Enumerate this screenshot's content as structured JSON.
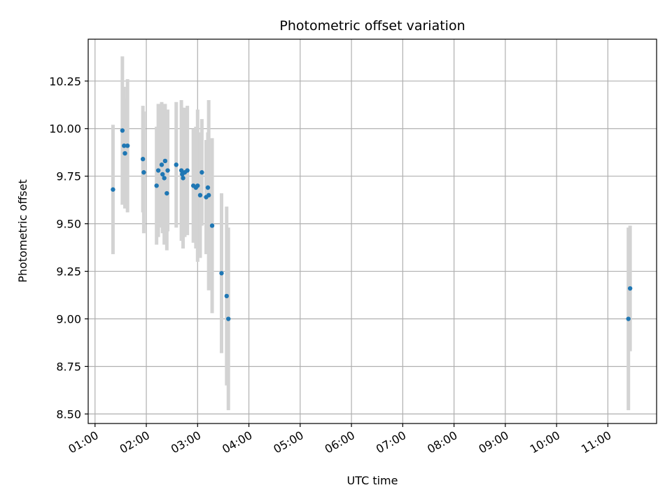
{
  "chart_data": {
    "type": "scatter",
    "title": "Photometric offset variation",
    "xlabel": "UTC time",
    "ylabel": "Photometric offset",
    "x_unit": "UTC hour",
    "xlim": [
      "00:52",
      "11:57"
    ],
    "ylim": [
      8.45,
      10.47
    ],
    "grid": true,
    "x_ticks": [
      "01:00",
      "02:00",
      "03:00",
      "04:00",
      "05:00",
      "06:00",
      "07:00",
      "08:00",
      "09:00",
      "10:00",
      "11:00"
    ],
    "y_ticks": [
      "8.50",
      "8.75",
      "9.00",
      "9.25",
      "9.50",
      "9.75",
      "10.00",
      "10.25"
    ],
    "colors": {
      "points": "#1f77b4",
      "errorbars": "#d3d3d3",
      "grid": "#b0b0b0"
    },
    "points": [
      {
        "x": "01:21",
        "y": 9.68,
        "err": 0.34
      },
      {
        "x": "01:32",
        "y": 9.99,
        "err": 0.39
      },
      {
        "x": "01:34",
        "y": 9.91,
        "err": 0.31
      },
      {
        "x": "01:35",
        "y": 9.87,
        "err": 0.29
      },
      {
        "x": "01:38",
        "y": 9.91,
        "err": 0.35
      },
      {
        "x": "01:56",
        "y": 9.84,
        "err": 0.28
      },
      {
        "x": "01:57",
        "y": 9.77,
        "err": 0.32
      },
      {
        "x": "02:12",
        "y": 9.7,
        "err": 0.31
      },
      {
        "x": "02:14",
        "y": 9.78,
        "err": 0.35
      },
      {
        "x": "02:18",
        "y": 9.81,
        "err": 0.33
      },
      {
        "x": "02:19",
        "y": 9.76,
        "err": 0.31
      },
      {
        "x": "02:21",
        "y": 9.74,
        "err": 0.35
      },
      {
        "x": "02:22",
        "y": 9.83,
        "err": 0.3
      },
      {
        "x": "02:24",
        "y": 9.66,
        "err": 0.3
      },
      {
        "x": "02:25",
        "y": 9.78,
        "err": 0.32
      },
      {
        "x": "02:35",
        "y": 9.81,
        "err": 0.33
      },
      {
        "x": "02:41",
        "y": 9.78,
        "err": 0.37
      },
      {
        "x": "02:42",
        "y": 9.76,
        "err": 0.32
      },
      {
        "x": "02:43",
        "y": 9.74,
        "err": 0.37
      },
      {
        "x": "02:45",
        "y": 9.77,
        "err": 0.34
      },
      {
        "x": "02:48",
        "y": 9.78,
        "err": 0.34
      },
      {
        "x": "02:55",
        "y": 9.7,
        "err": 0.3
      },
      {
        "x": "02:58",
        "y": 9.69,
        "err": 0.32
      },
      {
        "x": "03:00",
        "y": 9.7,
        "err": 0.4
      },
      {
        "x": "03:03",
        "y": 9.65,
        "err": 0.33
      },
      {
        "x": "03:05",
        "y": 9.77,
        "err": 0.28
      },
      {
        "x": "03:10",
        "y": 9.64,
        "err": 0.3
      },
      {
        "x": "03:12",
        "y": 9.69,
        "err": 0.29
      },
      {
        "x": "03:13",
        "y": 9.65,
        "err": 0.5
      },
      {
        "x": "03:17",
        "y": 9.49,
        "err": 0.46
      },
      {
        "x": "03:28",
        "y": 9.24,
        "err": 0.42
      },
      {
        "x": "03:34",
        "y": 9.12,
        "err": 0.47
      },
      {
        "x": "03:36",
        "y": 9.0,
        "err": 0.48
      },
      {
        "x": "11:24",
        "y": 9.0,
        "err": 0.48
      },
      {
        "x": "11:26",
        "y": 9.16,
        "err": 0.33
      }
    ]
  }
}
